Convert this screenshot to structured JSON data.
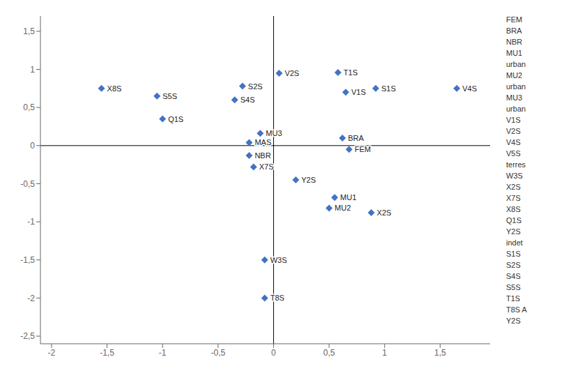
{
  "chart_data": {
    "type": "scatter",
    "points": [
      {
        "label": "X8S",
        "x": -1.55,
        "y": 0.75
      },
      {
        "label": "S5S",
        "x": -1.05,
        "y": 0.65
      },
      {
        "label": "Q1S",
        "x": -1.0,
        "y": 0.35
      },
      {
        "label": "S2S",
        "x": -0.28,
        "y": 0.78
      },
      {
        "label": "S4S",
        "x": -0.35,
        "y": 0.6
      },
      {
        "label": "V2S",
        "x": 0.05,
        "y": 0.95
      },
      {
        "label": "MU3",
        "x": -0.12,
        "y": 0.16
      },
      {
        "label": "MAS",
        "x": -0.22,
        "y": 0.04
      },
      {
        "label": "NBR",
        "x": -0.22,
        "y": -0.13
      },
      {
        "label": "X7S",
        "x": -0.18,
        "y": -0.28
      },
      {
        "label": "T1S",
        "x": 0.58,
        "y": 0.96
      },
      {
        "label": "V1S",
        "x": 0.65,
        "y": 0.7
      },
      {
        "label": "S1S",
        "x": 0.92,
        "y": 0.75
      },
      {
        "label": "V4S",
        "x": 1.65,
        "y": 0.75
      },
      {
        "label": "BRA",
        "x": 0.62,
        "y": 0.1
      },
      {
        "label": "FEM",
        "x": 0.68,
        "y": -0.05
      },
      {
        "label": "Y2S",
        "x": 0.2,
        "y": -0.45
      },
      {
        "label": "MU1",
        "x": 0.55,
        "y": -0.68
      },
      {
        "label": "MU2",
        "x": 0.5,
        "y": -0.82
      },
      {
        "label": "X2S",
        "x": 0.88,
        "y": -0.88
      },
      {
        "label": "W3S",
        "x": -0.08,
        "y": -1.5
      },
      {
        "label": "T8S",
        "x": -0.08,
        "y": -2.0
      }
    ],
    "color": "#4472C4",
    "marker": "diamond",
    "xlim": [
      -2.1,
      1.95
    ],
    "ylim": [
      -2.6,
      1.7
    ],
    "xticks": [
      -2,
      {
        "value": -1.5,
        "label": "-1,5"
      },
      -1,
      {
        "value": -0.5,
        "label": "-0,5"
      },
      0,
      {
        "value": 0.5,
        "label": "0,5"
      },
      1,
      {
        "value": 1.5,
        "label": "1,5"
      }
    ],
    "yticks": [
      {
        "value": -2.5,
        "label": "-2,5"
      },
      -2,
      {
        "value": -1.5,
        "label": "-1,5"
      },
      -1,
      {
        "value": -0.5,
        "label": "-0,5"
      },
      0,
      {
        "value": 0.5,
        "label": "0,5"
      },
      1,
      {
        "value": 1.5,
        "label": "1,5"
      }
    ],
    "grid": false,
    "annotations": [
      "FEM",
      "BRA",
      "NBR",
      "MU1",
      "urban",
      "MU2",
      "urban",
      "MU3",
      "urban",
      "V1S",
      "V2S",
      "V4S",
      "V5S",
      "terres",
      "W3S",
      "X2S",
      "X7S",
      "X8S",
      "Q1S",
      "Y2S",
      "indet",
      "S1S",
      "S2S",
      "S4S",
      "S5S",
      "T1S",
      "T8S A",
      "Y2S"
    ]
  }
}
